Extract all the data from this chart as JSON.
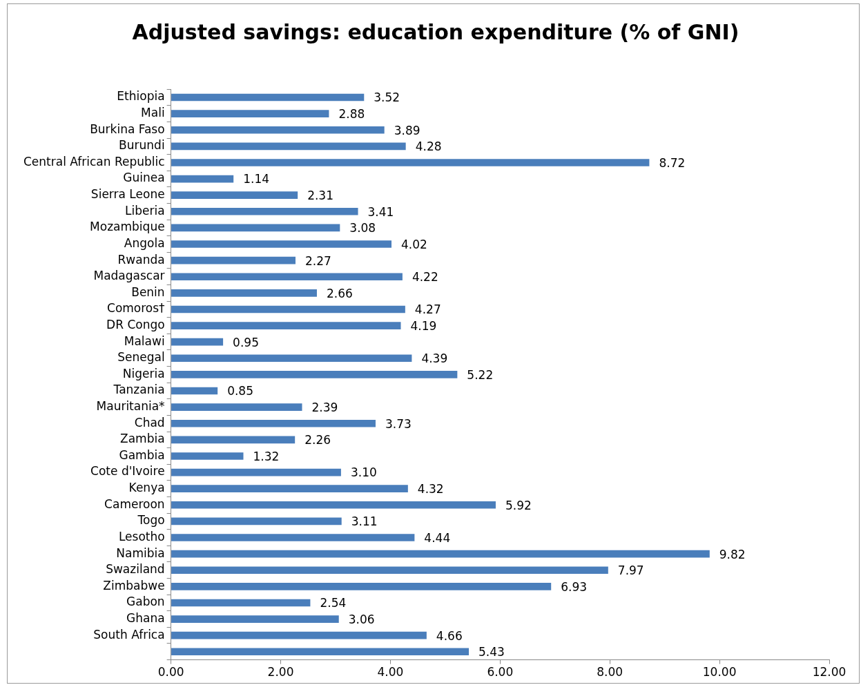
{
  "chart_data": {
    "type": "bar",
    "orientation": "horizontal",
    "title": "Adjusted savings: education expenditure (% of GNI)",
    "categories": [
      "Ethiopia",
      "Mali",
      "Burkina Faso",
      "Burundi",
      "Central African Republic",
      "Guinea",
      "Sierra Leone",
      "Liberia",
      "Mozambique",
      "Angola",
      "Rwanda",
      "Madagascar",
      "Benin",
      "Comoros†",
      "DR Congo",
      "Malawi",
      "Senegal",
      "Nigeria",
      "Tanzania",
      "Mauritania*",
      "Chad",
      "Zambia",
      "Gambia",
      "Cote d'Ivoire",
      "Kenya",
      "Cameroon",
      "Togo",
      "Lesotho",
      "Namibia",
      "Swaziland",
      "Zimbabwe",
      "Gabon",
      "Ghana",
      "South Africa",
      null
    ],
    "values": [
      3.52,
      2.88,
      3.89,
      4.28,
      8.72,
      1.14,
      2.31,
      3.41,
      3.08,
      4.02,
      2.27,
      4.22,
      2.66,
      4.27,
      4.19,
      0.95,
      4.39,
      5.22,
      0.85,
      2.39,
      3.73,
      2.26,
      1.32,
      3.1,
      4.32,
      5.92,
      3.11,
      4.44,
      9.82,
      7.97,
      6.93,
      2.54,
      3.06,
      4.66,
      5.43
    ],
    "value_labels": [
      "3.52",
      "2.88",
      "3.89",
      "4.28",
      "8.72",
      "1.14",
      "2.31",
      "3.41",
      "3.08",
      "4.02",
      "2.27",
      "4.22",
      "2.66",
      "4.27",
      "4.19",
      "0.95",
      "4.39",
      "5.22",
      "0.85",
      "2.39",
      "3.73",
      "2.26",
      "1.32",
      "3.10",
      "4.32",
      "5.92",
      "3.11",
      "4.44",
      "9.82",
      "7.97",
      "6.93",
      "2.54",
      "3.06",
      "4.66",
      "5.43"
    ],
    "color": "#4a7ebb",
    "xlim": [
      0,
      12
    ],
    "xticks": [
      {
        "value": 0,
        "label": "0.00"
      },
      {
        "value": 2,
        "label": "2.00"
      },
      {
        "value": 4,
        "label": "4.00"
      },
      {
        "value": 6,
        "label": "6.00"
      },
      {
        "value": 8,
        "label": "8.00"
      },
      {
        "value": 10,
        "label": "10.00"
      },
      {
        "value": 12,
        "label": "12.00"
      }
    ]
  }
}
